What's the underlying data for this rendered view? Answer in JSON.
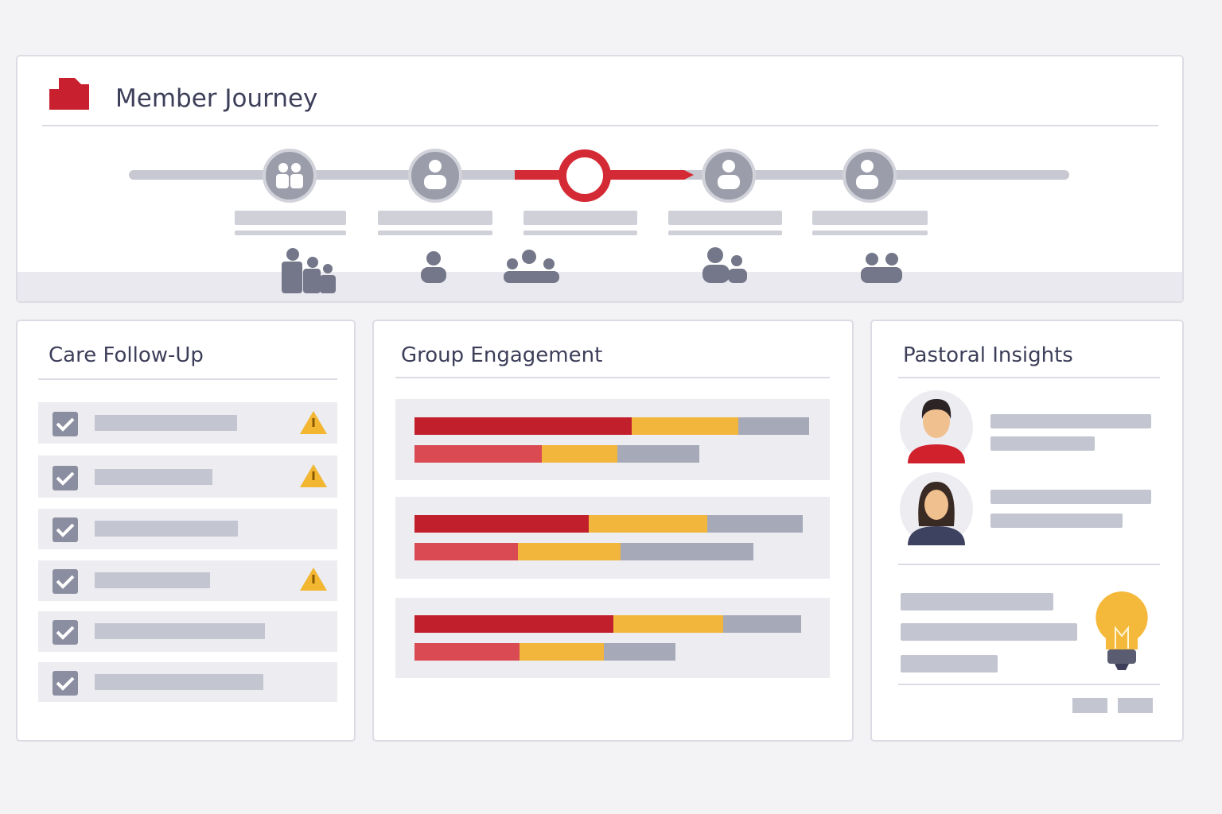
{
  "header": {
    "title": "Member Journey"
  },
  "panels": [
    {
      "title": "Care Follow-Up"
    },
    {
      "title": "Group Engagement"
    },
    {
      "title": "Pastoral Insights"
    }
  ]
}
